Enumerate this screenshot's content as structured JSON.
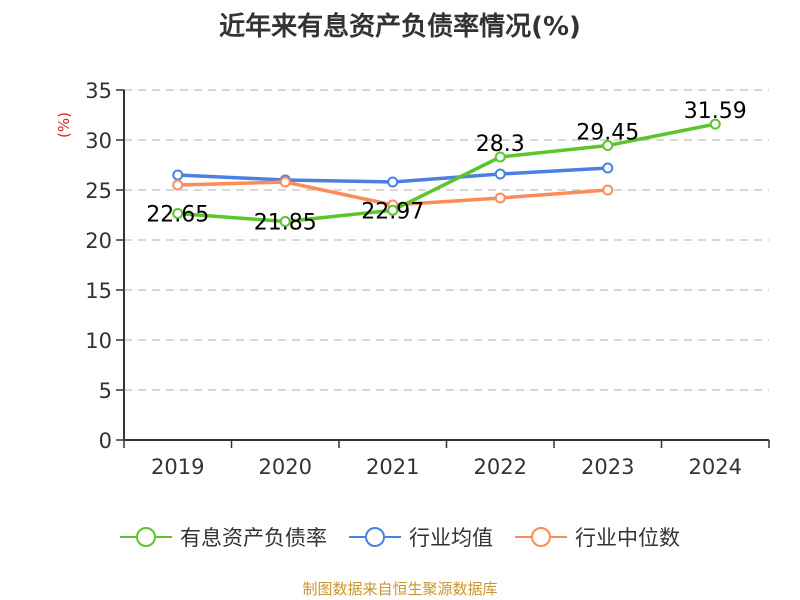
{
  "title": "近年来有息资产负债率情况(%)",
  "y_unit_label": "(%)",
  "source": "制图数据来自恒生聚源数据库",
  "colors": {
    "series_main": "#5bc52c",
    "series_avg": "#4a80e0",
    "series_median": "#fb8c5a",
    "grid": "#cccccc",
    "axis": "#333333",
    "unit_label": "#e02020",
    "source": "#c8962e"
  },
  "chart_data": {
    "type": "line",
    "title": "近年来有息资产负债率情况(%)",
    "xlabel": "",
    "ylabel": "(%)",
    "categories": [
      "2019",
      "2020",
      "2021",
      "2022",
      "2023",
      "2024"
    ],
    "ylim": [
      0,
      35
    ],
    "yticks": [
      0,
      5,
      10,
      15,
      20,
      25,
      30,
      35
    ],
    "grid": true,
    "legend_position": "bottom",
    "series": [
      {
        "name": "有息资产负债率",
        "values": [
          22.65,
          21.85,
          22.97,
          28.3,
          29.45,
          31.59
        ],
        "labels": [
          "22.65",
          "21.85",
          "22.97",
          "28.3",
          "29.45",
          "31.59"
        ]
      },
      {
        "name": "行业均值",
        "values": [
          26.5,
          26.0,
          25.8,
          26.6,
          27.2,
          null
        ]
      },
      {
        "name": "行业中位数",
        "values": [
          25.5,
          25.8,
          23.5,
          24.2,
          25.0,
          null
        ]
      }
    ]
  },
  "legend": [
    {
      "label": "有息资产负债率",
      "icon": "circle-line-marker"
    },
    {
      "label": "行业均值",
      "icon": "circle-line-marker"
    },
    {
      "label": "行业中位数",
      "icon": "circle-line-marker"
    }
  ]
}
